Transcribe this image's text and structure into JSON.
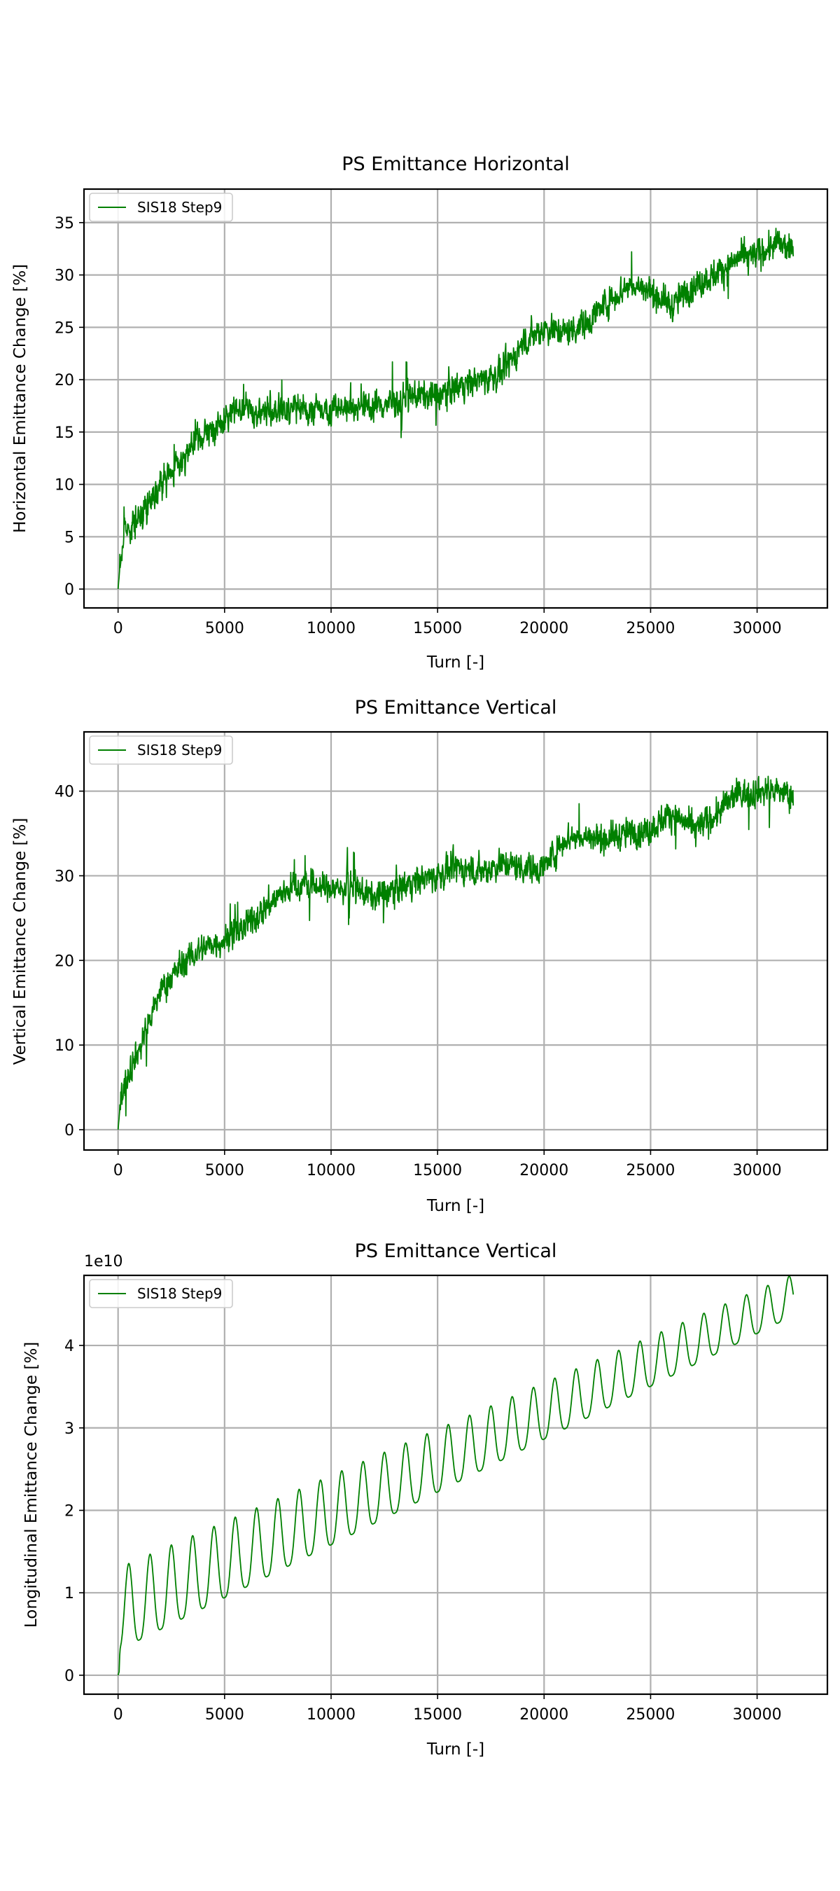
{
  "colors": {
    "series": "#008000",
    "grid": "#b0b0b0",
    "frame": "#000000"
  },
  "chart_data": [
    {
      "type": "line",
      "title": "PS Emittance Horizontal",
      "xlabel": "Turn [-]",
      "ylabel": "Horizontal Emittance Change [%]",
      "xlim": [
        -1600,
        33300
      ],
      "ylim": [
        -1.8,
        38.2
      ],
      "xticks": [
        0,
        5000,
        10000,
        15000,
        20000,
        25000,
        30000
      ],
      "xtick_labels": [
        "0",
        "5000",
        "10000",
        "15000",
        "20000",
        "25000",
        "30000"
      ],
      "yticks": [
        0,
        5,
        10,
        15,
        20,
        25,
        30,
        35
      ],
      "ytick_labels": [
        "0",
        "5",
        "10",
        "15",
        "20",
        "25",
        "30",
        "35"
      ],
      "grid": true,
      "legend": {
        "position": "upper-left",
        "entries": [
          "SIS18 Step9"
        ]
      },
      "series": [
        {
          "name": "SIS18 Step9",
          "color": "#008000",
          "noise": 1.3,
          "x": [
            0,
            100,
            300,
            500,
            1000,
            1500,
            2000,
            2500,
            3000,
            3500,
            4000,
            4500,
            5000,
            5500,
            6000,
            7000,
            8000,
            9000,
            10000,
            11000,
            12000,
            13000,
            14000,
            15000,
            16000,
            17000,
            18000,
            19000,
            20000,
            21000,
            22000,
            23000,
            24000,
            25000,
            26000,
            27000,
            28000,
            29000,
            30000,
            31000,
            31700
          ],
          "y": [
            0,
            2.5,
            5.5,
            6.0,
            6.8,
            8.5,
            10.0,
            11.0,
            12.5,
            13.5,
            14.5,
            15.2,
            16.0,
            17.5,
            17.0,
            17.0,
            17.2,
            17.0,
            17.3,
            17.5,
            17.5,
            17.8,
            18.5,
            18.5,
            19.5,
            20.0,
            20.5,
            23.5,
            25.0,
            24.5,
            25.5,
            27.5,
            29.0,
            28.5,
            27.0,
            29.0,
            30.0,
            31.5,
            32.0,
            33.0,
            32.0
          ]
        }
      ]
    },
    {
      "type": "line",
      "title": "PS Emittance Vertical",
      "xlabel": "Turn [-]",
      "ylabel": "Vertical Emittance Change [%]",
      "xlim": [
        -1600,
        33300
      ],
      "ylim": [
        -2.4,
        47
      ],
      "xticks": [
        0,
        5000,
        10000,
        15000,
        20000,
        25000,
        30000
      ],
      "xtick_labels": [
        "0",
        "5000",
        "10000",
        "15000",
        "20000",
        "25000",
        "30000"
      ],
      "yticks": [
        0,
        10,
        20,
        30,
        40
      ],
      "ytick_labels": [
        "0",
        "10",
        "20",
        "30",
        "40"
      ],
      "grid": true,
      "legend": {
        "position": "upper-left",
        "entries": [
          "SIS18 Step9"
        ]
      },
      "series": [
        {
          "name": "SIS18 Step9",
          "color": "#008000",
          "noise": 1.6,
          "x": [
            0,
            100,
            300,
            500,
            1000,
            1500,
            2000,
            3000,
            4000,
            5000,
            6000,
            7000,
            8000,
            9000,
            10000,
            11000,
            12000,
            13000,
            14000,
            15000,
            16000,
            17000,
            18000,
            19000,
            20000,
            21000,
            22000,
            23000,
            24000,
            25000,
            26000,
            27000,
            28000,
            29000,
            30000,
            31000,
            31700
          ],
          "y": [
            0,
            3.0,
            5.5,
            7.0,
            9.5,
            13.0,
            16.5,
            19.5,
            21.5,
            22.5,
            24.0,
            26.5,
            28.5,
            29.0,
            28.5,
            28.5,
            27.5,
            28.5,
            29.5,
            30.0,
            31.0,
            30.5,
            31.5,
            31.0,
            31.0,
            34.5,
            34.5,
            34.5,
            35.0,
            35.5,
            37.5,
            35.5,
            37.0,
            39.5,
            40.0,
            40.0,
            39.5
          ]
        }
      ]
    },
    {
      "type": "line",
      "title": "PS Emittance Vertical",
      "xlabel": "Turn [-]",
      "ylabel": "Longitudinal Emittance Change [%]",
      "offset_label": "1e10",
      "xlim": [
        -1600,
        33300
      ],
      "ylim": [
        -0.23,
        4.85
      ],
      "xticks": [
        0,
        5000,
        10000,
        15000,
        20000,
        25000,
        30000
      ],
      "xtick_labels": [
        "0",
        "5000",
        "10000",
        "15000",
        "20000",
        "25000",
        "30000"
      ],
      "yticks": [
        0,
        1,
        2,
        3,
        4
      ],
      "ytick_labels": [
        "0",
        "1",
        "2",
        "3",
        "4"
      ],
      "grid": true,
      "legend": {
        "position": "upper-left",
        "entries": [
          "SIS18 Step9"
        ]
      },
      "series": [
        {
          "name": "SIS18 Step9",
          "color": "#008000",
          "model": "oscillating",
          "x_range": [
            0,
            31700
          ],
          "period": 1000,
          "baseline": {
            "start": 0.35,
            "slope_per_turn": 0.0001274
          },
          "peak_height": {
            "start": 1.0,
            "slope_per_turn": -1.58e-05
          },
          "values_scale": "1e10"
        }
      ]
    }
  ]
}
